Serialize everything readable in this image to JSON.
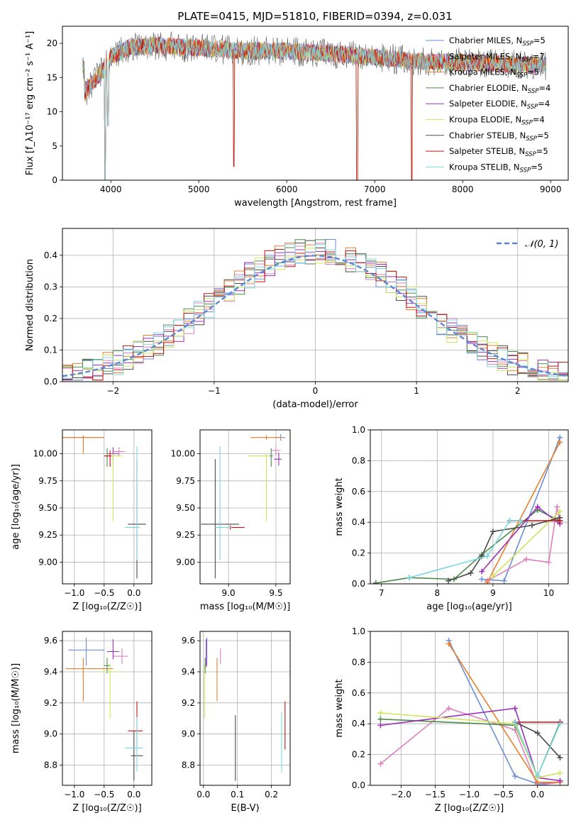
{
  "figure": {
    "title": "PLATE=0415, MJD=51810, FIBERID=0394, z=0.031"
  },
  "models": [
    {
      "name": "Chabrier MILES",
      "nssp": "5",
      "color": "#6b8fd8"
    },
    {
      "name": "Salpeter MILES",
      "nssp": "7",
      "color": "#e07fc0"
    },
    {
      "name": "Kroupa MILES",
      "nssp": "5",
      "color": "#e8802c"
    },
    {
      "name": "Chabrier ELODIE",
      "nssp": "4",
      "color": "#4c8a4c"
    },
    {
      "name": "Salpeter ELODIE",
      "nssp": "4",
      "color": "#9b30b8"
    },
    {
      "name": "Kroupa ELODIE",
      "nssp": "4",
      "color": "#cde65a"
    },
    {
      "name": "Chabrier STELIB",
      "nssp": "5",
      "color": "#4a4a4a"
    },
    {
      "name": "Salpeter STELIB",
      "nssp": "5",
      "color": "#c41414"
    },
    {
      "name": "Kroupa STELIB",
      "nssp": "5",
      "color": "#7fd6e0"
    }
  ],
  "chart_data": [
    {
      "id": "spectrum",
      "type": "line",
      "xlabel": "wavelength [Angstrom, rest frame]",
      "ylabel": "Flux [f_λ10⁻¹⁷ erg cm⁻² s⁻¹ A⁻¹]",
      "xlim": [
        3450,
        9200
      ],
      "ylim": [
        0,
        22.5
      ],
      "xticks": [
        4000,
        5000,
        6000,
        7000,
        8000,
        9000
      ],
      "yticks": [
        0,
        5,
        10,
        15,
        20
      ],
      "legend": "top-right",
      "continuum_x": [
        3700,
        3800,
        3900,
        4000,
        4200,
        4500,
        5000,
        5500,
        6000,
        6500,
        7000,
        7500,
        8000,
        8500,
        8900
      ],
      "continuum_y": [
        12.5,
        14.5,
        15.8,
        18.0,
        19.4,
        19.7,
        19.3,
        18.9,
        18.9,
        18.5,
        18.0,
        17.4,
        17.2,
        17.0,
        16.8
      ],
      "features": [
        {
          "x": 3934,
          "y": 0
        },
        {
          "x": 3968,
          "y": 8
        },
        {
          "x": 5400,
          "y": 2
        },
        {
          "x": 6800,
          "y": 0
        },
        {
          "x": 7420,
          "y": 0
        }
      ]
    },
    {
      "id": "residuals",
      "type": "histogram",
      "xlabel": "(data-model)/error",
      "ylabel": "Normed distribution",
      "xlim": [
        -2.5,
        2.5
      ],
      "ylim": [
        0,
        0.485
      ],
      "xticks": [
        -2,
        -1,
        0,
        1,
        2
      ],
      "yticks": [
        0.0,
        0.1,
        0.2,
        0.3,
        0.4
      ],
      "legend": "top-right",
      "reference": {
        "name": "𝒩(0, 1)",
        "color": "#5b86d4"
      },
      "bin_edges_range": [
        -2.5,
        2.5
      ],
      "bin_width": 0.1,
      "grid": true
    },
    {
      "id": "age-vs-z",
      "type": "scatter",
      "xlabel": "Z [log₁₀(Z/Z☉)]",
      "ylabel": "age  [log₁₀(age/yr)]",
      "xlim": [
        -1.2,
        0.3
      ],
      "ylim": [
        8.8,
        10.22
      ],
      "xticks": [
        -1.0,
        -0.5,
        0.0
      ],
      "yticks": [
        9.0,
        9.25,
        9.5,
        9.75,
        10.0
      ],
      "points": [
        {
          "model": 0,
          "x": -0.85,
          "y": 10.15,
          "xerr": [
            0.35,
            0.35
          ],
          "yerr": [
            0.05,
            0.02
          ]
        },
        {
          "model": 1,
          "x": -0.25,
          "y": 10.02,
          "xerr": [
            0.1,
            0.1
          ],
          "yerr": [
            0.04,
            0.04
          ]
        },
        {
          "model": 2,
          "x": -0.85,
          "y": 10.15,
          "xerr": [
            0.35,
            0.35
          ],
          "yerr": [
            0.15,
            0.02
          ]
        },
        {
          "model": 3,
          "x": -0.45,
          "y": 9.98,
          "xerr": [
            0.05,
            0.05
          ],
          "yerr": [
            0.1,
            0.07
          ]
        },
        {
          "model": 4,
          "x": -0.35,
          "y": 10.0,
          "xerr": [
            0.1,
            0.1
          ],
          "yerr": [
            0.06,
            0.06
          ]
        },
        {
          "model": 5,
          "x": -0.35,
          "y": 9.98,
          "xerr": [
            0.15,
            0.15
          ],
          "yerr": [
            0.6,
            0.02
          ]
        },
        {
          "model": 6,
          "x": 0.05,
          "y": 9.35,
          "xerr": [
            0.15,
            0.15
          ],
          "yerr": [
            0.5,
            0.6
          ]
        },
        {
          "model": 7,
          "x": -0.4,
          "y": 9.98,
          "xerr": [
            0.1,
            0.02
          ],
          "yerr": [
            0.1,
            0.05
          ]
        },
        {
          "model": 8,
          "x": 0.05,
          "y": 9.32,
          "xerr": [
            0.2,
            0.05
          ],
          "yerr": [
            0.3,
            0.75
          ]
        }
      ]
    },
    {
      "id": "age-vs-mass",
      "type": "scatter",
      "xlabel": "mass [log₁₀(M/M☉)]",
      "ylabel": "",
      "xlim": [
        8.7,
        9.65
      ],
      "ylim": [
        8.8,
        10.22
      ],
      "xticks": [
        9.0,
        9.5
      ],
      "yticks": [
        9.0,
        9.25,
        9.5,
        9.75,
        10.0
      ],
      "points": [
        {
          "model": 0,
          "x": 9.55,
          "y": 10.15,
          "xerr": [
            0.05,
            0.05
          ],
          "yerr": [
            0.03,
            0.03
          ]
        },
        {
          "model": 1,
          "x": 9.5,
          "y": 10.03,
          "xerr": [
            0.05,
            0.05
          ],
          "yerr": [
            0.05,
            0.04
          ]
        },
        {
          "model": 2,
          "x": 9.4,
          "y": 10.15,
          "xerr": [
            0.17,
            0.17
          ],
          "yerr": [
            0.02,
            0.02
          ]
        },
        {
          "model": 3,
          "x": 9.45,
          "y": 9.98,
          "xerr": [
            0.02,
            0.02
          ],
          "yerr": [
            0.1,
            0.07
          ]
        },
        {
          "model": 4,
          "x": 9.53,
          "y": 9.95,
          "xerr": [
            0.05,
            0.03
          ],
          "yerr": [
            0.06,
            0.06
          ]
        },
        {
          "model": 5,
          "x": 9.4,
          "y": 9.98,
          "xerr": [
            0.2,
            0.02
          ],
          "yerr": [
            0.6,
            0.02
          ]
        },
        {
          "model": 6,
          "x": 8.86,
          "y": 9.35,
          "xerr": [
            0.15,
            0.25
          ],
          "yerr": [
            0.5,
            0.6
          ]
        },
        {
          "model": 7,
          "x": 9.02,
          "y": 9.32,
          "xerr": [
            0.05,
            0.15
          ],
          "yerr": [
            0.02,
            0.02
          ]
        },
        {
          "model": 8,
          "x": 8.91,
          "y": 9.32,
          "xerr": [
            0.05,
            0.12
          ],
          "yerr": [
            0.3,
            0.75
          ]
        }
      ]
    },
    {
      "id": "weight-vs-age",
      "type": "line",
      "xlabel": "age  [log₁₀(age/yr)]",
      "ylabel": "mass weight",
      "xlim": [
        6.8,
        10.35
      ],
      "ylim": [
        0,
        1.0
      ],
      "xticks": [
        7,
        8,
        9,
        10
      ],
      "yticks": [
        0.0,
        0.2,
        0.4,
        0.6,
        0.8,
        1.0
      ],
      "series": [
        {
          "model": 0,
          "x": [
            8.8,
            9.2,
            10.2
          ],
          "y": [
            0.03,
            0.02,
            0.95
          ]
        },
        {
          "model": 1,
          "x": [
            8.9,
            9.6,
            10.0,
            10.15,
            10.2
          ],
          "y": [
            0.02,
            0.16,
            0.14,
            0.5,
            0.4
          ]
        },
        {
          "model": 2,
          "x": [
            8.9,
            10.2
          ],
          "y": [
            0.01,
            0.92
          ]
        },
        {
          "model": 3,
          "x": [
            6.9,
            7.5,
            8.3,
            8.8,
            9.8,
            10.2
          ],
          "y": [
            0.005,
            0.04,
            0.03,
            0.19,
            0.48,
            0.41
          ]
        },
        {
          "model": 4,
          "x": [
            8.8,
            9.8,
            10.2
          ],
          "y": [
            0.08,
            0.5,
            0.39
          ]
        },
        {
          "model": 5,
          "x": [
            9.0,
            10.2
          ],
          "y": [
            0.05,
            0.47
          ]
        },
        {
          "model": 6,
          "x": [
            8.2,
            8.6,
            8.8,
            9.0,
            9.7,
            10.2
          ],
          "y": [
            0.02,
            0.07,
            0.18,
            0.34,
            0.38,
            0.43
          ]
        },
        {
          "model": 7,
          "x": [
            9.3,
            10.2
          ],
          "y": [
            0.41,
            0.41
          ]
        },
        {
          "model": 8,
          "x": [
            7.5,
            8.9,
            9.3,
            9.5
          ],
          "y": [
            0.04,
            0.18,
            0.41,
            0.41
          ]
        }
      ]
    },
    {
      "id": "mass-vs-z",
      "type": "scatter",
      "xlabel": "Z [log₁₀(Z/Z☉)]",
      "ylabel": "mass [log₁₀(M/M☉)]",
      "xlim": [
        -1.2,
        0.3
      ],
      "ylim": [
        8.67,
        9.66
      ],
      "xticks": [
        -1.0,
        -0.5,
        0.0
      ],
      "yticks": [
        8.8,
        9.0,
        9.2,
        9.4,
        9.6
      ],
      "points": [
        {
          "model": 0,
          "x": -0.8,
          "y": 9.54,
          "xerr": [
            0.3,
            0.3
          ],
          "yerr": [
            0.1,
            0.08
          ]
        },
        {
          "model": 1,
          "x": -0.2,
          "y": 9.5,
          "xerr": [
            0.15,
            0.1
          ],
          "yerr": [
            0.05,
            0.05
          ]
        },
        {
          "model": 2,
          "x": -0.85,
          "y": 9.42,
          "xerr": [
            0.3,
            0.5
          ],
          "yerr": [
            0.21,
            0.07
          ]
        },
        {
          "model": 3,
          "x": -0.45,
          "y": 9.44,
          "xerr": [
            0.05,
            0.05
          ],
          "yerr": [
            0.05,
            0.05
          ]
        },
        {
          "model": 4,
          "x": -0.35,
          "y": 9.53,
          "xerr": [
            0.1,
            0.1
          ],
          "yerr": [
            0.05,
            0.08
          ]
        },
        {
          "model": 5,
          "x": -0.4,
          "y": 9.4,
          "xerr": [
            0.15,
            0.15
          ],
          "yerr": [
            0.3,
            0.05
          ]
        },
        {
          "model": 6,
          "x": 0.0,
          "y": 8.86,
          "xerr": [
            0.05,
            0.15
          ],
          "yerr": [
            0.16,
            0.16
          ]
        },
        {
          "model": 7,
          "x": 0.05,
          "y": 9.02,
          "xerr": [
            0.15,
            0.1
          ],
          "yerr": [
            0.1,
            0.19
          ]
        },
        {
          "model": 8,
          "x": 0.05,
          "y": 8.91,
          "xerr": [
            0.2,
            0.1
          ],
          "yerr": [
            0.15,
            0.2
          ]
        }
      ]
    },
    {
      "id": "mass-vs-ebv",
      "type": "scatter",
      "xlabel": "E(B-V)",
      "ylabel": "",
      "xlim": [
        -0.01,
        0.255
      ],
      "ylim": [
        8.67,
        9.66
      ],
      "xticks": [
        0.0,
        0.1,
        0.2
      ],
      "yticks": [
        8.8,
        9.0,
        9.2,
        9.4,
        9.6
      ],
      "points": [
        {
          "model": 0,
          "x": 0.01,
          "y": 9.54,
          "xerr": [
            0,
            0
          ],
          "yerr": [
            0.1,
            0.08
          ]
        },
        {
          "model": 1,
          "x": 0.05,
          "y": 9.5,
          "xerr": [
            0,
            0
          ],
          "yerr": [
            0.05,
            0.05
          ]
        },
        {
          "model": 2,
          "x": 0.04,
          "y": 9.42,
          "xerr": [
            0,
            0
          ],
          "yerr": [
            0.21,
            0.07
          ]
        },
        {
          "model": 3,
          "x": 0.005,
          "y": 9.44,
          "xerr": [
            0,
            0
          ],
          "yerr": [
            0.05,
            0.05
          ]
        },
        {
          "model": 4,
          "x": 0.008,
          "y": 9.53,
          "xerr": [
            0,
            0
          ],
          "yerr": [
            0.1,
            0.08
          ]
        },
        {
          "model": 5,
          "x": 0.003,
          "y": 9.4,
          "xerr": [
            0,
            0
          ],
          "yerr": [
            0.3,
            0.05
          ]
        },
        {
          "model": 6,
          "x": 0.094,
          "y": 8.86,
          "xerr": [
            0,
            0
          ],
          "yerr": [
            0.16,
            0.26
          ]
        },
        {
          "model": 7,
          "x": 0.24,
          "y": 9.02,
          "xerr": [
            0,
            0
          ],
          "yerr": [
            0.12,
            0.19
          ]
        },
        {
          "model": 8,
          "x": 0.23,
          "y": 8.91,
          "xerr": [
            0,
            0
          ],
          "yerr": [
            0.16,
            0.23
          ]
        }
      ]
    },
    {
      "id": "weight-vs-z",
      "type": "line",
      "xlabel": "Z [log₁₀(Z/Z☉)]",
      "ylabel": "mass weight",
      "xlim": [
        -2.45,
        0.45
      ],
      "ylim": [
        0,
        1.0
      ],
      "xticks": [
        -2.0,
        -1.5,
        -1.0,
        -0.5,
        0.0
      ],
      "yticks": [
        0.0,
        0.2,
        0.4,
        0.6,
        0.8,
        1.0
      ],
      "series": [
        {
          "model": 0,
          "x": [
            -1.3,
            -0.33,
            0.0,
            0.33
          ],
          "y": [
            0.94,
            0.06,
            0.01,
            0.02
          ]
        },
        {
          "model": 1,
          "x": [
            -2.3,
            -1.3,
            -0.33,
            0.0,
            0.33
          ],
          "y": [
            0.14,
            0.5,
            0.36,
            0.0,
            0.02
          ]
        },
        {
          "model": 2,
          "x": [
            -1.3,
            0.0,
            0.33
          ],
          "y": [
            0.92,
            0.02,
            0.02
          ]
        },
        {
          "model": 3,
          "x": [
            -2.3,
            -0.33,
            0.0,
            0.33
          ],
          "y": [
            0.43,
            0.39,
            0.06,
            0.41
          ]
        },
        {
          "model": 4,
          "x": [
            -2.3,
            -0.33,
            0.0,
            0.33
          ],
          "y": [
            0.39,
            0.5,
            0.05,
            0.03
          ]
        },
        {
          "model": 5,
          "x": [
            -2.3,
            -0.33,
            0.0,
            0.33
          ],
          "y": [
            0.47,
            0.4,
            0.05,
            0.08
          ]
        },
        {
          "model": 6,
          "x": [
            -0.33,
            0.0,
            0.33
          ],
          "y": [
            0.41,
            0.34,
            0.18
          ]
        },
        {
          "model": 7,
          "x": [
            -0.33,
            0.33
          ],
          "y": [
            0.41,
            0.41
          ]
        },
        {
          "model": 8,
          "x": [
            -0.33,
            0.0,
            0.33
          ],
          "y": [
            0.41,
            0.06,
            0.4
          ]
        }
      ]
    }
  ]
}
